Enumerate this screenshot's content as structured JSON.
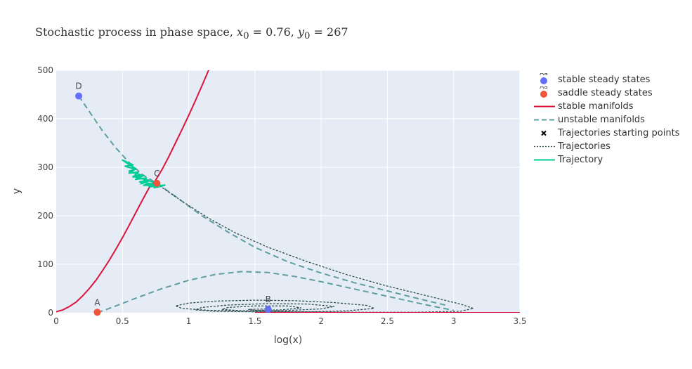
{
  "title": {
    "prefix": "Stochastic process in phase space, ",
    "x0_label": "x",
    "x0_sub": "0",
    "x0_value": " = 0.76, ",
    "y0_label": "y",
    "y0_sub": "0",
    "y0_value": " = 267"
  },
  "chart_data": {
    "type": "line",
    "xlabel": "log(x)",
    "ylabel": "y",
    "xlim": [
      0,
      3.5
    ],
    "ylim": [
      0,
      500
    ],
    "xticks": [
      0,
      0.5,
      1,
      1.5,
      2,
      2.5,
      3,
      3.5
    ],
    "xtick_labels": [
      "0",
      "0.5",
      "1",
      "1.5",
      "2",
      "2.5",
      "3",
      "3.5"
    ],
    "yticks": [
      0,
      100,
      200,
      300,
      400,
      500
    ],
    "ytick_labels": [
      "0",
      "100",
      "200",
      "300",
      "400",
      "500"
    ],
    "grid": true,
    "legend_position": "right",
    "steady_states": {
      "stable": [
        {
          "label": "B",
          "x": 1.6,
          "y": 7
        },
        {
          "label": "D",
          "x": 0.17,
          "y": 447
        }
      ],
      "saddle": [
        {
          "label": "A",
          "x": 0.31,
          "y": 1
        },
        {
          "label": "C",
          "x": 0.76,
          "y": 267
        }
      ]
    },
    "stable_manifold": {
      "x": [
        0,
        0.05,
        0.1,
        0.15,
        0.2,
        0.25,
        0.3,
        0.35,
        0.4,
        0.45,
        0.5,
        0.55,
        0.6,
        0.65,
        0.7,
        0.75,
        0.8,
        0.85,
        0.9,
        0.95,
        1.0,
        1.05,
        1.1,
        1.15,
        1.17,
        1.5,
        2.0,
        2.5,
        3.0,
        3.5
      ],
      "y": [
        2,
        6,
        13,
        22,
        35,
        50,
        67,
        87,
        108,
        131,
        155,
        180,
        206,
        232,
        257,
        273,
        296,
        322,
        350,
        378,
        407,
        437,
        468,
        500,
        515,
        0,
        0,
        0,
        0,
        0
      ],
      "break_after_index": 24
    },
    "unstable_manifolds": [
      {
        "x": [
          0.17,
          0.25,
          0.35,
          0.45,
          0.55,
          0.65,
          0.76,
          0.9,
          1.1,
          1.3,
          1.5,
          1.75,
          2.0,
          2.25,
          2.5,
          2.75,
          2.95
        ],
        "y": [
          447,
          415,
          375,
          340,
          310,
          285,
          267,
          240,
          200,
          166,
          135,
          105,
          82,
          62,
          45,
          28,
          15
        ]
      },
      {
        "x": [
          0.31,
          0.45,
          0.6,
          0.8,
          1.0,
          1.2,
          1.4,
          1.6,
          1.8,
          2.0,
          2.2,
          2.4,
          2.6,
          2.8,
          3.0
        ],
        "y": [
          0,
          14,
          30,
          50,
          67,
          79,
          85,
          83,
          75,
          64,
          52,
          40,
          28,
          16,
          5
        ]
      }
    ],
    "trajectory_starts": [
      {
        "x": 0.76,
        "y": 267
      },
      {
        "x": 1.6,
        "y": 7
      }
    ],
    "trajectories_path": {
      "x": [
        0.78,
        0.95,
        1.15,
        1.35,
        1.6,
        1.9,
        2.2,
        2.5,
        2.8,
        3.05,
        3.15,
        3.05,
        2.7,
        2.3,
        1.9,
        1.5,
        1.15,
        0.95,
        0.9,
        1.0,
        1.2,
        1.5,
        1.8,
        2.1,
        2.35,
        2.4,
        2.2,
        1.9,
        1.5,
        1.2,
        1.05,
        1.1,
        1.3,
        1.6,
        1.9,
        2.1,
        2.0,
        1.7,
        1.4,
        1.25,
        1.3,
        1.5,
        1.75,
        1.85,
        1.7,
        1.5,
        1.45,
        1.6
      ],
      "y": [
        262,
        230,
        195,
        165,
        135,
        105,
        78,
        55,
        35,
        18,
        9,
        3,
        1,
        1,
        2,
        3,
        5,
        9,
        14,
        20,
        24,
        26,
        25,
        21,
        15,
        9,
        4,
        2,
        2,
        3,
        6,
        11,
        16,
        19,
        18,
        13,
        8,
        4,
        4,
        7,
        11,
        14,
        14,
        10,
        6,
        5,
        7,
        8
      ]
    },
    "trajectory_green": {
      "x": [
        0.76,
        0.7,
        0.64,
        0.68,
        0.6,
        0.66,
        0.58,
        0.62,
        0.55,
        0.6,
        0.5,
        0.58,
        0.52,
        0.6,
        0.55,
        0.64,
        0.58,
        0.7,
        0.63,
        0.72,
        0.66,
        0.78,
        0.7,
        0.82,
        0.74,
        0.8,
        0.72,
        0.78
      ],
      "y": [
        267,
        272,
        266,
        278,
        275,
        283,
        280,
        290,
        288,
        297,
        315,
        305,
        302,
        296,
        292,
        284,
        281,
        273,
        270,
        266,
        263,
        262,
        260,
        263,
        258,
        262,
        265,
        260
      ]
    },
    "series": [
      {
        "name": "stable steady states",
        "color": "#636efa",
        "kind": "marker"
      },
      {
        "name": "saddle steady states",
        "color": "#ef553b",
        "kind": "marker"
      },
      {
        "name": "stable manifolds",
        "color": "#dc143c",
        "kind": "line"
      },
      {
        "name": "unstable manifolds",
        "color": "#5f9ea0",
        "kind": "dash"
      },
      {
        "name": "Trajectories starting points",
        "color": "#000000",
        "kind": "cross"
      },
      {
        "name": "Trajectories",
        "color": "#2f4f4f",
        "kind": "dot"
      },
      {
        "name": "Trajectory",
        "color": "#00cc96",
        "kind": "line"
      }
    ],
    "legend_marker_text": "Aa"
  }
}
